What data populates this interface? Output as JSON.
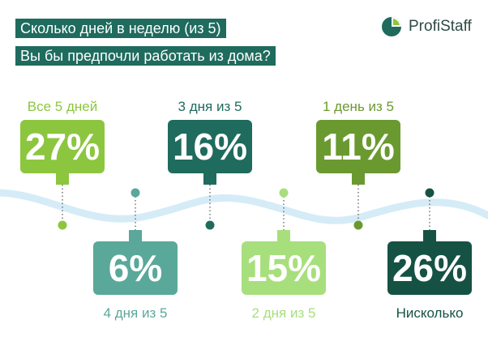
{
  "header": {
    "title_line1": "Сколько дней в неделю (из 5)",
    "title_line2": "Вы бы предпочли работать из дома?",
    "logo_text": "ProfiStaff"
  },
  "colors": {
    "title_bg": "#1f6b5e",
    "wave": "#d5ecf7"
  },
  "chart_data": {
    "type": "bar",
    "title": "Сколько дней в неделю (из 5) Вы бы предпочли работать из дома?",
    "unit": "%",
    "categories": [
      "Все 5 дней",
      "4 дня из 5",
      "3 дня из 5",
      "2 дня из 5",
      "1 день из 5",
      "Нисколько"
    ],
    "values": [
      27,
      6,
      16,
      15,
      11,
      26
    ],
    "value_labels": [
      "27%",
      "6%",
      "16%",
      "15%",
      "11%",
      "26%"
    ],
    "colors": [
      "#8cc63f",
      "#5aa89a",
      "#1f6b5e",
      "#a7df7d",
      "#6a9a2f",
      "#155244"
    ]
  }
}
